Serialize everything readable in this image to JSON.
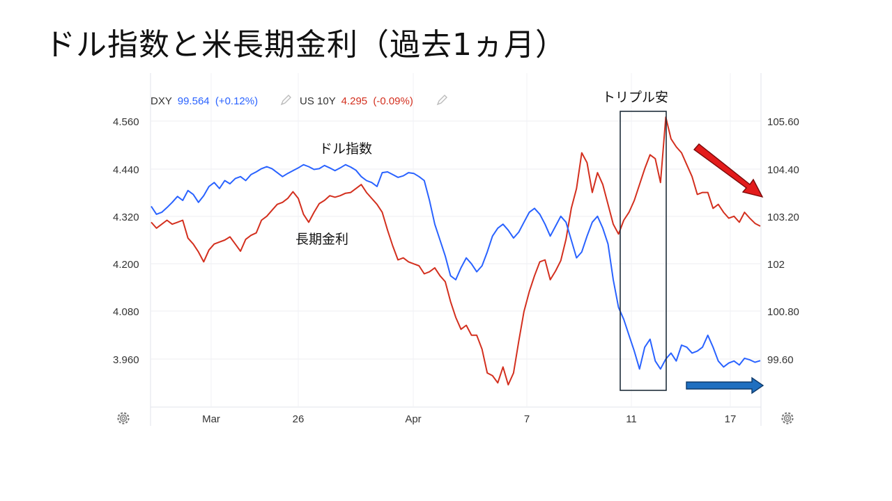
{
  "title": "ドル指数と米長期金利（過去1ヵ月）",
  "legend": {
    "dxy": {
      "label": "DXY",
      "value": "99.564",
      "change": "(+0.12%)",
      "color": "#2962ff"
    },
    "us10y": {
      "label": "US 10Y",
      "value": "4.295",
      "change": "(-0.09%)",
      "color": "#d32f1e"
    }
  },
  "annotations": {
    "dollar_index": "ドル指数",
    "long_rate": "長期金利",
    "triple_cheap": "トリプル安"
  },
  "icons": [
    "settings-gear-icon",
    "pencil-edit-icon",
    "down-right-arrow-icon",
    "right-arrow-icon"
  ],
  "chart_data": {
    "type": "line",
    "x_ticks": [
      "Mar",
      "26",
      "Apr",
      "7",
      "11",
      "17"
    ],
    "left_axis": {
      "ticks": [
        "4.560",
        "4.440",
        "4.320",
        "4.200",
        "4.080",
        "3.960"
      ],
      "range": [
        3.84,
        4.62
      ]
    },
    "right_axis": {
      "ticks": [
        "105.60",
        "104.40",
        "103.20",
        "102",
        "100.80",
        "99.60"
      ],
      "range": [
        98.4,
        106.2
      ]
    },
    "series": [
      {
        "name": "DXY",
        "axis": "right",
        "color": "#2962ff",
        "values": [
          103.45,
          103.25,
          103.3,
          103.42,
          103.55,
          103.7,
          103.6,
          103.85,
          103.75,
          103.55,
          103.72,
          103.95,
          104.05,
          103.9,
          104.1,
          104.02,
          104.15,
          104.2,
          104.1,
          104.25,
          104.32,
          104.4,
          104.45,
          104.4,
          104.3,
          104.2,
          104.28,
          104.35,
          104.42,
          104.5,
          104.45,
          104.38,
          104.4,
          104.48,
          104.42,
          104.35,
          104.42,
          104.5,
          104.44,
          104.36,
          104.2,
          104.1,
          104.05,
          103.95,
          104.3,
          104.32,
          104.25,
          104.18,
          104.22,
          104.3,
          104.28,
          104.2,
          104.1,
          103.6,
          103.0,
          102.6,
          102.2,
          101.7,
          101.6,
          101.9,
          102.15,
          102.0,
          101.8,
          101.95,
          102.3,
          102.7,
          102.9,
          103.0,
          102.85,
          102.65,
          102.8,
          103.05,
          103.3,
          103.4,
          103.25,
          103.0,
          102.7,
          102.95,
          103.2,
          103.05,
          102.6,
          102.15,
          102.3,
          102.7,
          103.05,
          103.2,
          102.9,
          102.5,
          101.6,
          100.9,
          100.6,
          100.2,
          99.8,
          99.35,
          99.9,
          100.1,
          99.55,
          99.35,
          99.6,
          99.75,
          99.55,
          99.95,
          99.9,
          99.75,
          99.8,
          99.9,
          100.2,
          99.9,
          99.55,
          99.4,
          99.5,
          99.55,
          99.45,
          99.62,
          99.58,
          99.52,
          99.56
        ]
      },
      {
        "name": "US 10Y",
        "axis": "left",
        "color": "#d32f1e",
        "values": [
          4.305,
          4.29,
          4.3,
          4.31,
          4.3,
          4.305,
          4.31,
          4.265,
          4.25,
          4.23,
          4.205,
          4.235,
          4.25,
          4.255,
          4.26,
          4.268,
          4.25,
          4.232,
          4.262,
          4.272,
          4.278,
          4.31,
          4.32,
          4.335,
          4.35,
          4.355,
          4.365,
          4.382,
          4.365,
          4.325,
          4.305,
          4.33,
          4.352,
          4.36,
          4.372,
          4.368,
          4.372,
          4.378,
          4.38,
          4.39,
          4.4,
          4.38,
          4.365,
          4.35,
          4.33,
          4.285,
          4.245,
          4.21,
          4.215,
          4.205,
          4.2,
          4.195,
          4.175,
          4.18,
          4.19,
          4.17,
          4.155,
          4.105,
          4.065,
          4.035,
          4.045,
          4.02,
          4.02,
          3.985,
          3.925,
          3.918,
          3.9,
          3.94,
          3.895,
          3.925,
          4.005,
          4.08,
          4.13,
          4.17,
          4.205,
          4.21,
          4.16,
          4.182,
          4.208,
          4.262,
          4.34,
          4.39,
          4.48,
          4.455,
          4.38,
          4.43,
          4.4,
          4.35,
          4.3,
          4.275,
          4.31,
          4.33,
          4.36,
          4.4,
          4.44,
          4.475,
          4.465,
          4.405,
          4.57,
          4.515,
          4.495,
          4.48,
          4.45,
          4.42,
          4.375,
          4.38,
          4.38,
          4.34,
          4.35,
          4.33,
          4.315,
          4.32,
          4.305,
          4.33,
          4.315,
          4.302,
          4.295
        ]
      }
    ]
  }
}
